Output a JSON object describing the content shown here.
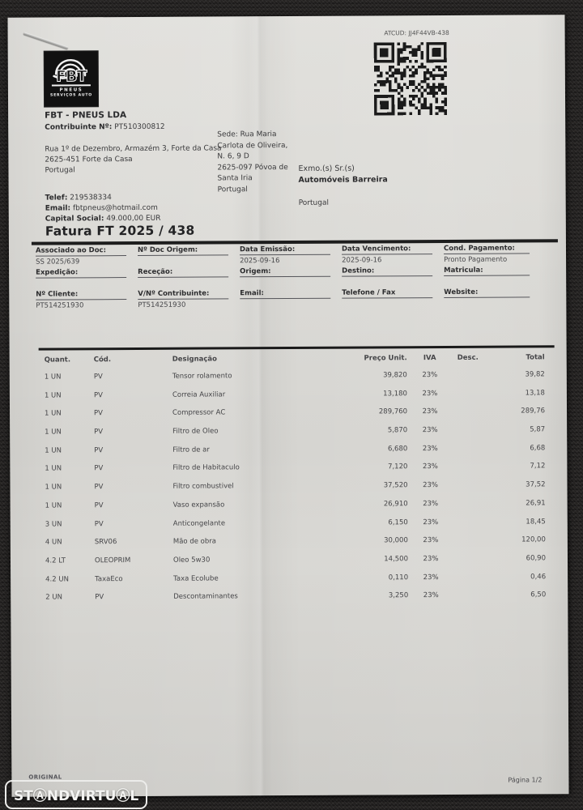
{
  "photo": {
    "background_color": "#242221",
    "paper_color": "#dbdad6",
    "ink_color": "#3a3a3c"
  },
  "atcud": "ATCUD: JJ4F44VB-438",
  "logo": {
    "brand": "FBT",
    "subtitle1": "PNEUS",
    "subtitle2": "SERVIÇOS AUTO"
  },
  "supplier": {
    "name": "FBT - PNEUS LDA",
    "vat_label": "Contribuinte Nº:",
    "vat_value": "PT510300812",
    "address_lines": [
      "Rua 1º de Dezembro, Armazém 3, Forte da Casa",
      "2625-451 Forte da Casa",
      "Portugal"
    ],
    "phone_label": "Telef:",
    "phone_value": "219538334",
    "email_label": "Email:",
    "email_value": "fbtpneus@hotmail.com",
    "capital_label": "Capital Social:",
    "capital_value": "49.000,00 EUR"
  },
  "hq_lines": [
    "Sede: Rua Maria",
    "Carlota de Oliveira,",
    "N. 6, 9 D",
    "2625-097 Póvoa de",
    "Santa Iria",
    "Portugal"
  ],
  "customer": {
    "salutation": "Exmo.(s) Sr.(s)",
    "name": "Automóveis Barreira",
    "country": "Portugal"
  },
  "invoice_title": "Fatura FT 2025 / 438",
  "meta_cells": [
    {
      "label": "Associado ao Doc:",
      "value": "SS 2025/639"
    },
    {
      "label": "Nº Doc Origem:",
      "value": ""
    },
    {
      "label": "Data Emissão:",
      "value": "2025-09-16"
    },
    {
      "label": "Data Vencimento:",
      "value": "2025-09-16"
    },
    {
      "label": "Cond. Pagamento:",
      "value": "Pronto Pagamento"
    },
    {
      "label": "Expedição:",
      "value": ""
    },
    {
      "label": "Receção:",
      "value": ""
    },
    {
      "label": "Origem:",
      "value": ""
    },
    {
      "label": "Destino:",
      "value": ""
    },
    {
      "label": "Matricula:",
      "value": ""
    },
    {
      "label": "Nº Cliente:",
      "value": "PT514251930"
    },
    {
      "label": "V/Nº Contribuinte:",
      "value": "PT514251930"
    },
    {
      "label": "Email:",
      "value": ""
    },
    {
      "label": "Telefone / Fax",
      "value": ""
    },
    {
      "label": "Website:",
      "value": ""
    }
  ],
  "items": {
    "headers": [
      "Quant.",
      "Cód.",
      "Designação",
      "Preço Unit.",
      "IVA",
      "Desc.",
      "Total"
    ],
    "rows": [
      [
        "1 UN",
        "PV",
        "Tensor rolamento",
        "39,820",
        "23%",
        "",
        "39,82"
      ],
      [
        "1 UN",
        "PV",
        "Correia Auxiliar",
        "13,180",
        "23%",
        "",
        "13,18"
      ],
      [
        "1 UN",
        "PV",
        "Compressor AC",
        "289,760",
        "23%",
        "",
        "289,76"
      ],
      [
        "1 UN",
        "PV",
        "Filtro de Oleo",
        "5,870",
        "23%",
        "",
        "5,87"
      ],
      [
        "1 UN",
        "PV",
        "Filtro de ar",
        "6,680",
        "23%",
        "",
        "6,68"
      ],
      [
        "1 UN",
        "PV",
        "Filtro de Habitaculo",
        "7,120",
        "23%",
        "",
        "7,12"
      ],
      [
        "1 UN",
        "PV",
        "Filtro combustivel",
        "37,520",
        "23%",
        "",
        "37,52"
      ],
      [
        "1 UN",
        "PV",
        "Vaso expansão",
        "26,910",
        "23%",
        "",
        "26,91"
      ],
      [
        "3 UN",
        "PV",
        "Anticongelante",
        "6,150",
        "23%",
        "",
        "18,45"
      ],
      [
        "4 UN",
        "SRV06",
        "Mão de obra",
        "30,000",
        "23%",
        "",
        "120,00"
      ],
      [
        "4.2 LT",
        "OLEOPRIM",
        "Oleo 5w30",
        "14,500",
        "23%",
        "",
        "60,90"
      ],
      [
        "4.2 UN",
        "TaxaEco",
        "Taxa Ecolube",
        "0,110",
        "23%",
        "",
        "0,46"
      ],
      [
        "2 UN",
        "PV",
        "Descontaminantes",
        "3,250",
        "23%",
        "",
        "6,50"
      ]
    ]
  },
  "footer": {
    "copy_type": "ORIGINAL",
    "page": "Página 1/2"
  },
  "watermark": {
    "text": "STⒶNDVIRTUⒶL"
  }
}
